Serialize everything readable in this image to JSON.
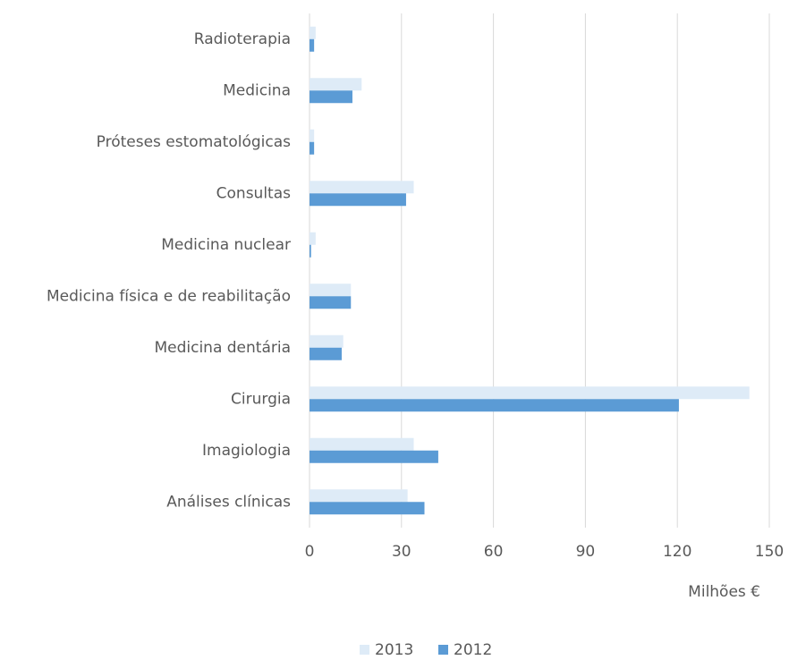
{
  "chart_data": {
    "type": "bar",
    "orientation": "horizontal",
    "categories": [
      "Radioterapia",
      "Medicina",
      "Próteses estomatológicas",
      "Consultas",
      "Medicina nuclear",
      "Medicina física e de reabilitação",
      "Medicina dentária",
      "Cirurgia",
      "Imagiologia",
      "Análises clínicas"
    ],
    "series": [
      {
        "name": "2013",
        "color": "#deebf7",
        "values": [
          2,
          17,
          1.5,
          34,
          2,
          13.5,
          11,
          143.5,
          34,
          32
        ]
      },
      {
        "name": "2012",
        "color": "#5b9bd5",
        "values": [
          1.5,
          14,
          1.5,
          31.5,
          0.5,
          13.5,
          10.5,
          120.5,
          42,
          37.5
        ]
      }
    ],
    "xlabel": "Milhões €",
    "xlim": [
      0,
      150
    ],
    "xticks": [
      0,
      30,
      60,
      90,
      120,
      150
    ],
    "grid": true,
    "legend": "bottom"
  }
}
